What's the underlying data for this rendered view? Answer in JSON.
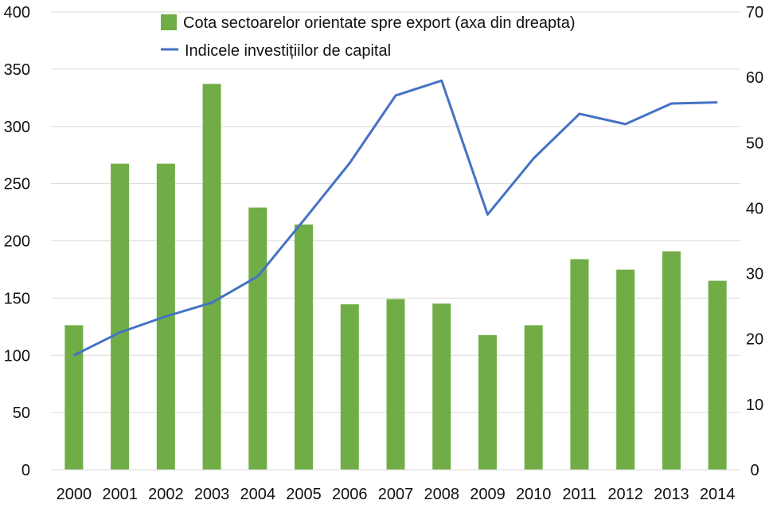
{
  "chart_data": {
    "type": "bar",
    "categories": [
      "2000",
      "2001",
      "2002",
      "2003",
      "2004",
      "2005",
      "2006",
      "2007",
      "2008",
      "2009",
      "2010",
      "2011",
      "2012",
      "2013",
      "2014"
    ],
    "series": [
      {
        "name": "Cota sectoarelor orientate spre export (axa din dreapta)",
        "type": "bar",
        "axis": "right",
        "color": "#70ad47",
        "values": [
          22.1,
          46.8,
          46.8,
          59.0,
          40.1,
          37.5,
          25.3,
          26.1,
          25.4,
          20.6,
          22.1,
          32.2,
          30.6,
          33.4,
          28.9
        ]
      },
      {
        "name": "Indicele investițiilor de capital",
        "type": "line",
        "axis": "left",
        "color": "#4472c4",
        "values": [
          100,
          120,
          134,
          146,
          169,
          218,
          268,
          327,
          340,
          223,
          272,
          311,
          302,
          320,
          321
        ]
      }
    ],
    "y_left": {
      "min": 0,
      "max": 400,
      "ticks": [
        "0",
        "50",
        "100",
        "150",
        "200",
        "250",
        "300",
        "350",
        "400"
      ]
    },
    "y_right": {
      "min": 0,
      "max": 70,
      "ticks": [
        "0",
        "10",
        "20",
        "30",
        "40",
        "50",
        "60",
        "70"
      ]
    },
    "grid": true,
    "legend": "top-center"
  }
}
